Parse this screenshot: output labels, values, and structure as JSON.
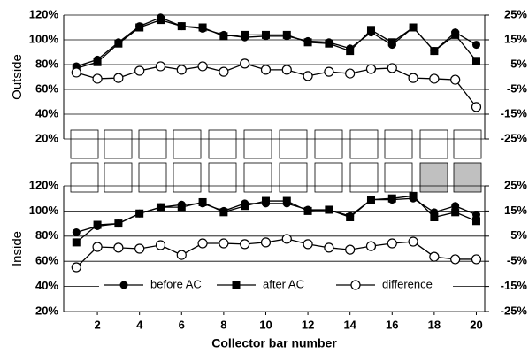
{
  "chart_data": [
    {
      "type": "line",
      "ylabel": "Outside",
      "x": [
        1,
        2,
        3,
        4,
        5,
        6,
        7,
        8,
        9,
        10,
        11,
        12,
        13,
        14,
        15,
        16,
        17,
        18,
        19,
        20
      ],
      "xlim": [
        0.4,
        20.4
      ],
      "ylim": [
        20,
        120
      ],
      "yticks": [
        {
          "value": 20,
          "label": "20%"
        },
        {
          "value": 40,
          "label": "40%"
        },
        {
          "value": 60,
          "label": "60%"
        },
        {
          "value": 80,
          "label": "80%"
        },
        {
          "value": 100,
          "label": "100%"
        },
        {
          "value": 120,
          "label": "120%"
        }
      ],
      "y2lim": [
        -25,
        25
      ],
      "y2ticks": [
        {
          "value": -25,
          "label": "-25%"
        },
        {
          "value": -15,
          "label": "-15%"
        },
        {
          "value": -5,
          "label": "-5%"
        },
        {
          "value": 5,
          "label": "5%"
        },
        {
          "value": 15,
          "label": "15%"
        },
        {
          "value": 25,
          "label": "25%"
        }
      ],
      "grid": true,
      "series": [
        {
          "color": "#000000",
          "marker": "circle",
          "values": [
            78.6,
            84,
            98,
            111,
            118,
            111,
            109,
            104,
            102,
            103,
            103,
            99,
            98,
            93,
            106,
            96,
            110,
            91,
            106,
            96
          ]
        },
        {
          "color": "#000000",
          "marker": "square",
          "values": [
            77,
            82,
            97,
            110,
            116,
            111,
            110,
            103,
            104,
            104,
            104,
            98,
            97,
            91,
            108,
            98,
            110,
            91,
            104,
            83
          ]
        },
        {
          "color": "#000000",
          "marker": "open-circle",
          "axis": "y2",
          "values": [
            1.8,
            -0.7,
            -0.4,
            2.5,
            4.3,
            2.9,
            4.3,
            2.1,
            5.4,
            2.9,
            2.9,
            0.4,
            2.1,
            1.4,
            3.2,
            3.6,
            -0.4,
            -0.7,
            -1.1,
            -12.1
          ]
        }
      ]
    },
    {
      "type": "line",
      "ylabel": "Inside",
      "xlabel": "Collector bar number",
      "x": [
        1,
        2,
        3,
        4,
        5,
        6,
        7,
        8,
        9,
        10,
        11,
        12,
        13,
        14,
        15,
        16,
        17,
        18,
        19,
        20
      ],
      "xlim": [
        0.4,
        20.4
      ],
      "xticks": [
        2,
        4,
        6,
        8,
        10,
        12,
        14,
        16,
        18,
        20
      ],
      "ylim": [
        20,
        120
      ],
      "yticks": [
        {
          "value": 20,
          "label": "20%"
        },
        {
          "value": 40,
          "label": "40%"
        },
        {
          "value": 60,
          "label": "60%"
        },
        {
          "value": 80,
          "label": "80%"
        },
        {
          "value": 100,
          "label": "100%"
        },
        {
          "value": 120,
          "label": "120%"
        }
      ],
      "y2lim": [
        -25,
        25
      ],
      "y2ticks": [
        {
          "value": -25,
          "label": "-25%"
        },
        {
          "value": -15,
          "label": "-15%"
        },
        {
          "value": -5,
          "label": "-5%"
        },
        {
          "value": 5,
          "label": "5%"
        },
        {
          "value": 15,
          "label": "15%"
        },
        {
          "value": 25,
          "label": "25%"
        }
      ],
      "grid": true,
      "series": [
        {
          "name": "before AC",
          "color": "#000000",
          "marker": "circle",
          "values": [
            83,
            88,
            90,
            98,
            103,
            105,
            106,
            100,
            106,
            106,
            106,
            101,
            101,
            96,
            109,
            109,
            110,
            99,
            104,
            97
          ]
        },
        {
          "name": "after AC",
          "color": "#000000",
          "marker": "square",
          "values": [
            75,
            89,
            90,
            98,
            103,
            103,
            107,
            99,
            104,
            108,
            108,
            100,
            101,
            95,
            109,
            110,
            112,
            95,
            99,
            92
          ]
        },
        {
          "name": "difference",
          "color": "#000000",
          "marker": "open-circle",
          "axis": "y2",
          "values": [
            -7.4,
            0.7,
            0.4,
            0,
            1.4,
            -2.5,
            2.1,
            2.1,
            1.8,
            2.5,
            3.9,
            1.8,
            0.4,
            -0.4,
            1,
            2.1,
            2.8,
            -3.2,
            -4.2,
            -4.2
          ]
        }
      ]
    }
  ]
}
